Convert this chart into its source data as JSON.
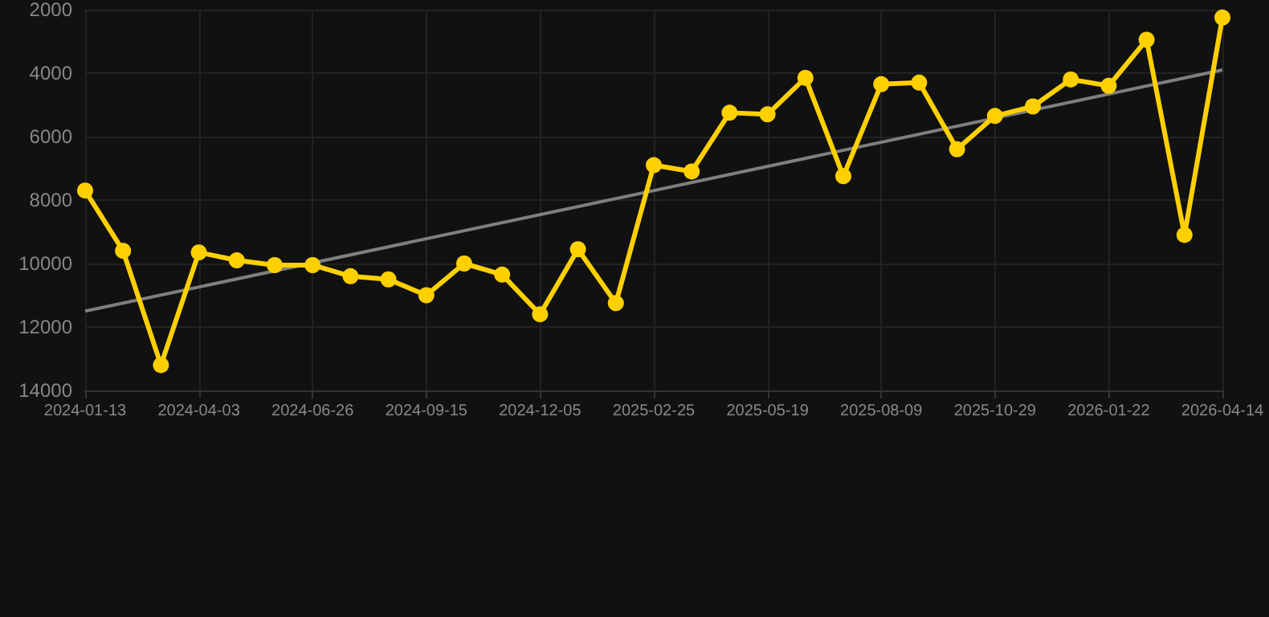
{
  "chart_data": {
    "type": "line",
    "categories": [
      "2024-01-13",
      null,
      null,
      "2024-04-03",
      null,
      null,
      "2024-06-26",
      null,
      null,
      "2024-09-15",
      null,
      null,
      "2024-12-05",
      null,
      null,
      "2025-02-25",
      null,
      null,
      "2025-05-19",
      null,
      null,
      "2025-08-09",
      null,
      null,
      "2025-10-29",
      null,
      null,
      "2026-01-22",
      null,
      null,
      "2026-04-14"
    ],
    "series": [
      {
        "color": "#ffd000",
        "values": [
          7700,
          9600,
          13200,
          9650,
          9900,
          10050,
          10050,
          10400,
          10500,
          11000,
          10000,
          10350,
          11600,
          9550,
          11250,
          6900,
          7100,
          5250,
          5300,
          4150,
          7250,
          4350,
          4300,
          6400,
          5350,
          5050,
          4200,
          4400,
          2950,
          9100,
          2250
        ]
      },
      {
        "type": "line",
        "color": "#7f7f7f",
        "marker": "none",
        "values": [
          11500,
          null,
          null,
          null,
          null,
          null,
          null,
          null,
          null,
          null,
          null,
          null,
          null,
          null,
          null,
          null,
          null,
          null,
          null,
          null,
          null,
          null,
          null,
          null,
          null,
          null,
          null,
          null,
          null,
          null,
          3900
        ]
      }
    ],
    "ylim": [
      14000,
      2000
    ],
    "yticks": [
      2000,
      4000,
      6000,
      8000,
      10000,
      12000,
      14000
    ],
    "grid": true,
    "marker": "circle",
    "line_style": "solid"
  }
}
